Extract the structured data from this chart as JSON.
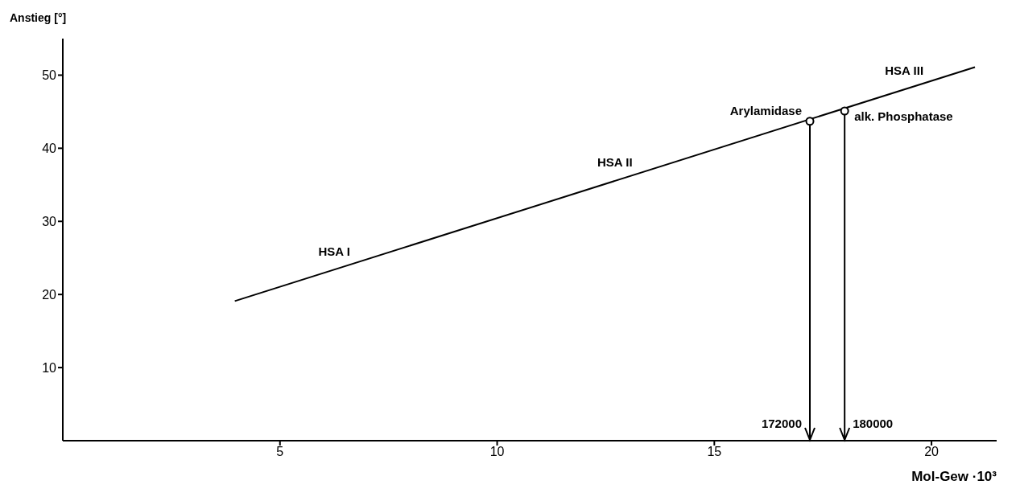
{
  "chart_data": {
    "type": "line",
    "xlabel": "Mol-Gew ·10³",
    "ylabel": "Anstieg [°]",
    "xlim": [
      0,
      21.5
    ],
    "ylim": [
      0,
      55
    ],
    "xticks": [
      5,
      10,
      15,
      20
    ],
    "yticks": [
      10,
      20,
      30,
      40,
      50
    ],
    "grid": false,
    "series": [
      {
        "x": [
          3.96,
          21
        ],
        "values": [
          19.1,
          51.1
        ],
        "color": "#000000",
        "marker": "none"
      },
      {
        "type": "scatter",
        "x": [
          17.2,
          18
        ],
        "values": [
          43.7,
          45.1
        ],
        "color": "#000000",
        "marker": "circle"
      }
    ],
    "annotations": [
      {
        "text": "HSA I",
        "x": 6.8,
        "y": 24.43
      },
      {
        "text": "HSA II",
        "x": 13.3,
        "y": 36.64
      },
      {
        "text": "HSA III",
        "x": 20,
        "y": 49.22
      },
      {
        "text": "Arylamidase",
        "x": 17.2,
        "y": 43.7
      },
      {
        "text": "alk. Phosphatase",
        "x": 18,
        "y": 45.1
      },
      "172000",
      "180000"
    ],
    "ref_lines": [
      {
        "axis": "x",
        "value": 17.2,
        "color": "#000000"
      },
      {
        "axis": "x",
        "value": 18,
        "color": "#000000"
      }
    ]
  }
}
